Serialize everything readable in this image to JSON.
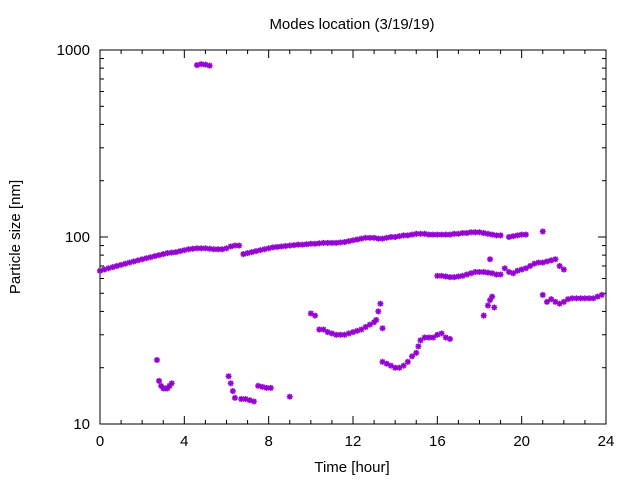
{
  "chart_data": {
    "type": "scatter",
    "title": "Modes location (3/19/19)",
    "xlabel": "Time [hour]",
    "ylabel": "Particle size [nm]",
    "xlim": [
      0,
      24
    ],
    "ylim": [
      10,
      1000
    ],
    "yscale": "log",
    "xticks": [
      0,
      4,
      8,
      12,
      16,
      20,
      24
    ],
    "yticks": [
      10,
      100,
      1000
    ],
    "grid": false,
    "legend": "none",
    "marker_color": "#9400d3",
    "series": [
      {
        "points": [
          [
            0.0,
            66
          ],
          [
            0.2,
            67
          ],
          [
            0.4,
            68
          ],
          [
            0.6,
            69
          ],
          [
            0.8,
            70
          ],
          [
            1.0,
            71
          ],
          [
            1.2,
            72
          ],
          [
            1.4,
            73
          ],
          [
            1.6,
            74
          ],
          [
            1.8,
            75
          ],
          [
            2.0,
            76
          ],
          [
            2.2,
            77
          ],
          [
            2.4,
            78
          ],
          [
            2.6,
            79
          ],
          [
            2.8,
            80
          ],
          [
            3.0,
            81
          ],
          [
            3.2,
            82
          ],
          [
            3.4,
            82.5
          ],
          [
            3.6,
            83
          ],
          [
            3.8,
            84
          ],
          [
            4.0,
            85
          ],
          [
            4.2,
            86
          ],
          [
            4.4,
            86.5
          ],
          [
            4.6,
            87
          ],
          [
            4.8,
            87
          ],
          [
            5.0,
            87
          ],
          [
            5.2,
            86.5
          ],
          [
            5.4,
            86
          ],
          [
            5.6,
            86
          ],
          [
            5.8,
            86
          ],
          [
            6.0,
            87
          ],
          [
            6.2,
            89
          ],
          [
            6.4,
            90
          ],
          [
            6.6,
            90
          ],
          [
            6.8,
            81
          ],
          [
            7.0,
            82
          ],
          [
            7.2,
            83
          ],
          [
            7.4,
            84
          ],
          [
            7.6,
            85
          ],
          [
            7.8,
            86
          ],
          [
            8.0,
            87
          ],
          [
            8.2,
            88
          ],
          [
            8.4,
            88.5
          ],
          [
            8.6,
            89
          ],
          [
            8.8,
            89.5
          ],
          [
            9.0,
            90
          ],
          [
            9.2,
            90.5
          ],
          [
            9.4,
            91
          ],
          [
            9.6,
            91
          ],
          [
            9.8,
            91.5
          ],
          [
            10.0,
            92
          ],
          [
            10.2,
            92
          ],
          [
            10.4,
            92.5
          ],
          [
            10.6,
            93
          ],
          [
            10.8,
            93
          ],
          [
            11.0,
            93
          ],
          [
            11.2,
            93
          ],
          [
            11.4,
            93.5
          ],
          [
            11.6,
            94
          ],
          [
            11.8,
            95
          ],
          [
            12.0,
            96
          ],
          [
            12.2,
            97
          ],
          [
            12.4,
            98
          ],
          [
            12.6,
            99
          ],
          [
            12.8,
            99
          ],
          [
            13.0,
            99
          ],
          [
            13.2,
            98
          ],
          [
            13.4,
            98
          ],
          [
            13.6,
            99
          ],
          [
            13.8,
            100
          ],
          [
            14.0,
            100
          ],
          [
            14.2,
            101
          ],
          [
            14.4,
            102
          ],
          [
            14.6,
            102
          ],
          [
            14.8,
            103
          ],
          [
            15.0,
            104
          ],
          [
            15.2,
            104
          ],
          [
            15.4,
            104
          ],
          [
            15.6,
            103
          ],
          [
            15.8,
            103
          ],
          [
            16.0,
            103
          ],
          [
            16.2,
            103
          ],
          [
            16.4,
            103
          ],
          [
            16.6,
            103
          ],
          [
            16.8,
            104
          ],
          [
            17.0,
            104
          ],
          [
            17.2,
            105
          ],
          [
            17.4,
            105
          ],
          [
            17.6,
            106
          ],
          [
            17.8,
            106
          ],
          [
            18.0,
            106
          ],
          [
            18.2,
            105
          ],
          [
            18.4,
            104
          ],
          [
            18.6,
            103
          ],
          [
            18.8,
            102
          ],
          [
            19.0,
            102
          ],
          [
            19.4,
            100
          ],
          [
            19.6,
            101
          ],
          [
            19.8,
            102
          ],
          [
            20.0,
            103
          ],
          [
            20.2,
            103
          ],
          [
            21.0,
            107
          ],
          [
            4.6,
            830
          ],
          [
            4.8,
            840
          ],
          [
            5.0,
            835
          ],
          [
            5.2,
            825
          ],
          [
            2.7,
            22
          ],
          [
            2.8,
            17
          ],
          [
            2.9,
            16
          ],
          [
            3.0,
            15.5
          ],
          [
            3.1,
            15.5
          ],
          [
            3.2,
            15.5
          ],
          [
            3.3,
            16
          ],
          [
            3.4,
            16.5
          ],
          [
            6.1,
            18
          ],
          [
            6.2,
            16.5
          ],
          [
            6.3,
            15
          ],
          [
            6.4,
            13.8
          ],
          [
            6.7,
            13.6
          ],
          [
            6.9,
            13.6
          ],
          [
            7.1,
            13.4
          ],
          [
            7.3,
            13.2
          ],
          [
            7.5,
            16
          ],
          [
            7.7,
            15.8
          ],
          [
            7.9,
            15.6
          ],
          [
            8.1,
            15.6
          ],
          [
            9.0,
            14
          ],
          [
            10.0,
            39
          ],
          [
            10.2,
            38
          ],
          [
            10.4,
            32
          ],
          [
            10.6,
            32
          ],
          [
            10.8,
            31
          ],
          [
            11.0,
            30.5
          ],
          [
            11.2,
            30
          ],
          [
            11.4,
            30
          ],
          [
            11.6,
            30
          ],
          [
            11.8,
            30.5
          ],
          [
            12.0,
            31
          ],
          [
            12.2,
            31.5
          ],
          [
            12.4,
            32
          ],
          [
            12.6,
            33
          ],
          [
            12.8,
            34
          ],
          [
            13.0,
            35
          ],
          [
            13.1,
            36
          ],
          [
            13.2,
            40
          ],
          [
            13.3,
            44
          ],
          [
            13.4,
            32.5
          ],
          [
            13.4,
            21.5
          ],
          [
            13.6,
            21
          ],
          [
            13.8,
            20.5
          ],
          [
            14.0,
            20
          ],
          [
            14.2,
            20
          ],
          [
            14.4,
            20.5
          ],
          [
            14.6,
            21.5
          ],
          [
            14.8,
            23
          ],
          [
            15.0,
            24
          ],
          [
            15.1,
            26
          ],
          [
            15.2,
            28
          ],
          [
            15.4,
            29
          ],
          [
            15.6,
            29
          ],
          [
            15.8,
            29
          ],
          [
            16.0,
            30
          ],
          [
            16.2,
            30.5
          ],
          [
            16.4,
            29
          ],
          [
            16.6,
            28.5
          ],
          [
            16.0,
            62
          ],
          [
            16.2,
            62
          ],
          [
            16.4,
            61.5
          ],
          [
            16.6,
            61
          ],
          [
            16.8,
            61
          ],
          [
            17.0,
            61.5
          ],
          [
            17.2,
            62
          ],
          [
            17.4,
            63
          ],
          [
            17.6,
            64
          ],
          [
            17.8,
            65
          ],
          [
            18.0,
            65
          ],
          [
            18.2,
            65
          ],
          [
            18.4,
            64.5
          ],
          [
            18.6,
            64
          ],
          [
            18.8,
            63
          ],
          [
            19.0,
            63
          ],
          [
            19.2,
            68
          ],
          [
            19.4,
            65
          ],
          [
            19.6,
            64
          ],
          [
            19.8,
            66
          ],
          [
            20.0,
            67
          ],
          [
            20.2,
            68
          ],
          [
            20.4,
            70
          ],
          [
            20.6,
            72
          ],
          [
            20.8,
            73
          ],
          [
            21.0,
            73
          ],
          [
            21.2,
            74
          ],
          [
            21.4,
            75
          ],
          [
            21.6,
            76
          ],
          [
            21.8,
            70
          ],
          [
            22.0,
            67
          ],
          [
            18.2,
            38
          ],
          [
            18.4,
            43
          ],
          [
            18.5,
            46
          ],
          [
            18.6,
            48
          ],
          [
            18.7,
            42
          ],
          [
            18.5,
            76
          ],
          [
            21.0,
            49
          ],
          [
            21.2,
            45
          ],
          [
            21.4,
            46.5
          ],
          [
            21.6,
            45
          ],
          [
            21.8,
            44
          ],
          [
            22.0,
            45
          ],
          [
            22.2,
            46.5
          ],
          [
            22.4,
            47
          ],
          [
            22.6,
            47
          ],
          [
            22.8,
            47
          ],
          [
            23.0,
            47
          ],
          [
            23.2,
            47
          ],
          [
            23.4,
            47
          ],
          [
            23.6,
            48
          ],
          [
            23.8,
            49
          ]
        ]
      }
    ]
  }
}
